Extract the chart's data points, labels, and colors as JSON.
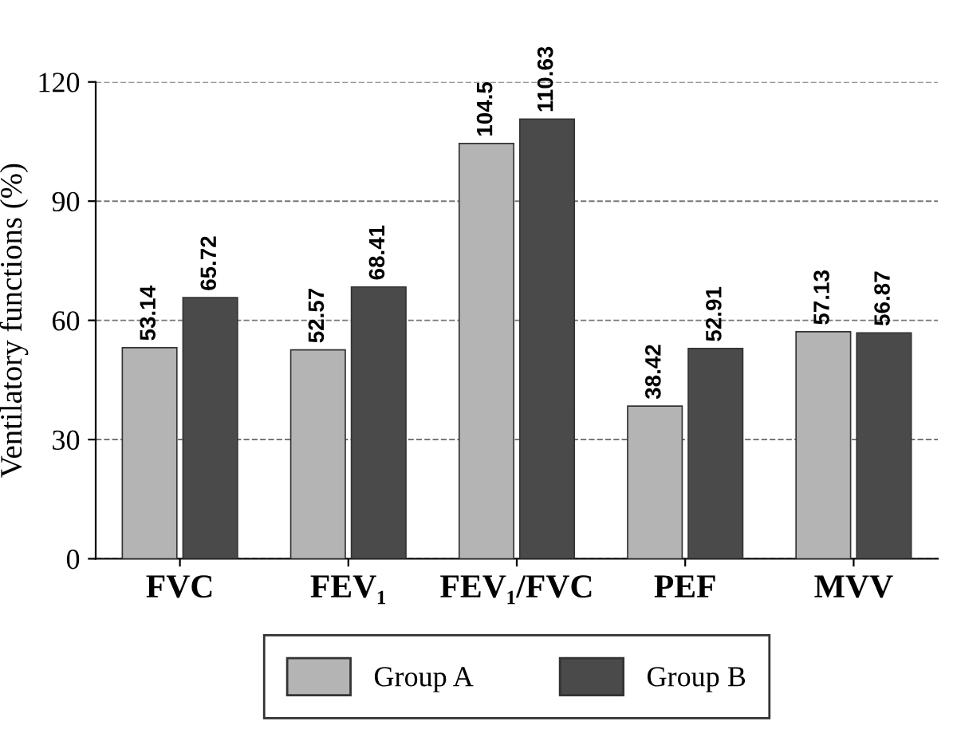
{
  "chart_data": {
    "type": "bar",
    "ylabel": "Ventilatory functions (%)",
    "categories": [
      "FVC",
      "FEV₁",
      "FEV₁/FVC",
      "PEF",
      "MVV"
    ],
    "series": [
      {
        "name": "Group A",
        "color": "#b4b4b4",
        "values": [
          53.14,
          52.57,
          104.5,
          38.42,
          57.13
        ]
      },
      {
        "name": "Group B",
        "color": "#4a4a4a",
        "values": [
          65.72,
          68.41,
          110.63,
          52.91,
          56.87
        ]
      }
    ],
    "ylim": [
      0,
      120
    ],
    "yticks": [
      0,
      30,
      60,
      90,
      120
    ],
    "grid": "y",
    "legend": "bottom",
    "data_labels": true
  }
}
